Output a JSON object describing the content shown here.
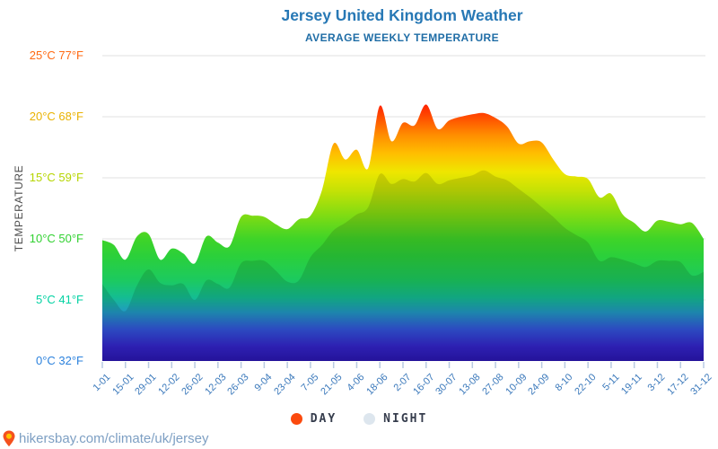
{
  "header": {
    "title": "Jersey United Kingdom Weather",
    "subtitle": "AVERAGE WEEKLY TEMPERATURE"
  },
  "footer": {
    "icon": "location-pin",
    "pin_body_color": "#f4511e",
    "pin_center_color": "#ffc400",
    "url": "hikersbay.com/climate/uk/jersey"
  },
  "colors": {
    "title_blue": "#2778b5",
    "subtitle_blue": "#1f6da6",
    "axis_label_blue": "#3b79bb",
    "grid_gray": "#e2e2e2",
    "tick_blue_gray": "#b9cbe2",
    "legend_text": "#363d4d"
  },
  "chart_data": {
    "type": "area",
    "title": "Jersey United Kingdom Weather",
    "subtitle": "AVERAGE WEEKLY TEMPERATURE",
    "ylabel": "TEMPERATURE",
    "xlabel": "",
    "ylim": [
      0,
      25
    ],
    "grid": true,
    "y_ticks": [
      {
        "label": "25°C 77°F",
        "value": 25,
        "color": "#ff6a13"
      },
      {
        "label": "20°C 68°F",
        "value": 20,
        "color": "#e9b200"
      },
      {
        "label": "15°C 59°F",
        "value": 15,
        "color": "#b6d500"
      },
      {
        "label": "10°C 50°F",
        "value": 10,
        "color": "#31d131"
      },
      {
        "label": "5°C 41°F",
        "value": 5,
        "color": "#00d2a2"
      },
      {
        "label": "0°C 32°F",
        "value": 0,
        "color": "#2c82dd"
      }
    ],
    "x_tick_labels": [
      "1-01",
      "15-01",
      "29-01",
      "12-02",
      "26-02",
      "12-03",
      "26-03",
      "9-04",
      "23-04",
      "7-05",
      "21-05",
      "4-06",
      "18-06",
      "2-07",
      "16-07",
      "30-07",
      "13-08",
      "27-08",
      "10-09",
      "24-09",
      "8-10",
      "22-10",
      "5-11",
      "19-11",
      "3-12",
      "17-12",
      "31-12"
    ],
    "x_tick_label_color": "#3b79bb",
    "weeks_per_tick": 2,
    "series": [
      {
        "name": "DAY",
        "values": [
          9.9,
          9.5,
          8.3,
          10.2,
          10.4,
          8.3,
          9.2,
          8.8,
          8.0,
          10.2,
          9.7,
          9.4,
          11.8,
          11.9,
          11.8,
          11.2,
          10.8,
          11.6,
          11.9,
          14.0,
          17.8,
          16.5,
          17.3,
          15.8,
          20.9,
          18.0,
          19.5,
          19.3,
          21.0,
          19.0,
          19.7,
          20.0,
          20.2,
          20.3,
          19.9,
          19.2,
          17.8,
          18.0,
          17.9,
          16.5,
          15.3,
          15.1,
          14.9,
          13.4,
          13.7,
          12.0,
          11.3,
          10.6,
          11.5,
          11.4,
          11.2,
          11.3,
          10.0
        ]
      },
      {
        "name": "NIGHT",
        "values": [
          6.3,
          5.0,
          4.1,
          6.2,
          7.5,
          6.4,
          6.2,
          6.3,
          5.0,
          6.6,
          6.3,
          6.0,
          8.0,
          8.2,
          8.2,
          7.4,
          6.5,
          6.6,
          8.5,
          9.5,
          10.7,
          11.3,
          12.0,
          12.6,
          15.3,
          14.5,
          14.9,
          14.7,
          15.4,
          14.5,
          14.8,
          15.0,
          15.2,
          15.6,
          15.1,
          14.8,
          14.1,
          13.4,
          12.6,
          11.8,
          10.9,
          10.3,
          9.7,
          8.2,
          8.5,
          8.3,
          8.0,
          7.7,
          8.2,
          8.2,
          8.1,
          7.0,
          7.3
        ]
      }
    ],
    "night_overlay_alpha": 0.12,
    "gradient_stops": [
      {
        "t": 0.0,
        "color": "#2a16b0"
      },
      {
        "t": 1.2,
        "color": "#3425cb"
      },
      {
        "t": 2.6,
        "color": "#3355dc"
      },
      {
        "t": 4.0,
        "color": "#2199c4"
      },
      {
        "t": 5.2,
        "color": "#14bd92"
      },
      {
        "t": 6.6,
        "color": "#1cca60"
      },
      {
        "t": 8.6,
        "color": "#2bd03a"
      },
      {
        "t": 10.0,
        "color": "#3fd428"
      },
      {
        "t": 12.0,
        "color": "#82dc12"
      },
      {
        "t": 14.0,
        "color": "#c6e205"
      },
      {
        "t": 15.5,
        "color": "#efe600"
      },
      {
        "t": 17.0,
        "color": "#ffbe00"
      },
      {
        "t": 18.5,
        "color": "#ff8e00"
      },
      {
        "t": 20.0,
        "color": "#ff4c00"
      },
      {
        "t": 21.2,
        "color": "#ff1a00"
      },
      {
        "t": 25.0,
        "color": "#fe0000"
      }
    ],
    "legend": {
      "position": "bottom",
      "items": [
        {
          "label": "DAY",
          "color": "#fb4a0e"
        },
        {
          "label": "NIGHT",
          "color": "#dde6ee"
        }
      ]
    }
  }
}
